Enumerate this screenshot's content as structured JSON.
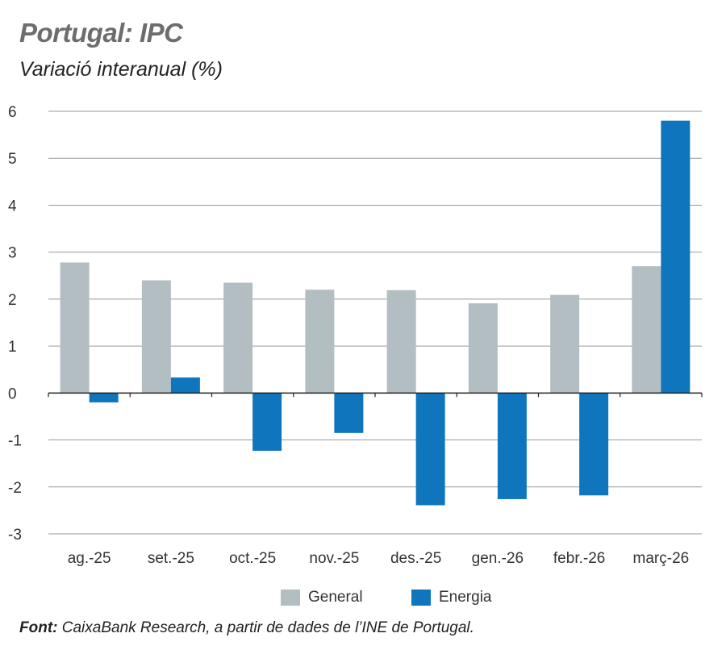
{
  "header": {
    "title": "Portugal: IPC",
    "subtitle": "Variació interanual (%)"
  },
  "chart_data": {
    "type": "bar",
    "categories": [
      "ag.-25",
      "set.-25",
      "oct.-25",
      "nov.-25",
      "des.-25",
      "gen.-26",
      "febr.-26",
      "març-26"
    ],
    "series": [
      {
        "name": "General",
        "color": "#b2bec2",
        "values": [
          2.78,
          2.4,
          2.35,
          2.2,
          2.19,
          1.91,
          2.09,
          2.7
        ]
      },
      {
        "name": "Energia",
        "color": "#0f75bc",
        "values": [
          -0.2,
          0.33,
          -1.23,
          -0.85,
          -2.39,
          -2.26,
          -2.18,
          5.8
        ]
      }
    ],
    "ylim": [
      -3,
      6
    ],
    "yticks": [
      6,
      5,
      4,
      3,
      2,
      1,
      0,
      -1,
      -2,
      -3
    ],
    "ytick_labels": [
      "6",
      "5",
      "4",
      "3",
      "2",
      "1",
      "0",
      "-1",
      "-2",
      "-3"
    ],
    "grid": true,
    "legend_position": "bottom-center"
  },
  "legend": {
    "items": [
      {
        "label": "General",
        "color": "#b2bec2"
      },
      {
        "label": "Energia",
        "color": "#0f75bc"
      }
    ]
  },
  "source": {
    "label": "Font:",
    "text": " CaixaBank Research, a partir de dades de l’INE de Portugal."
  }
}
